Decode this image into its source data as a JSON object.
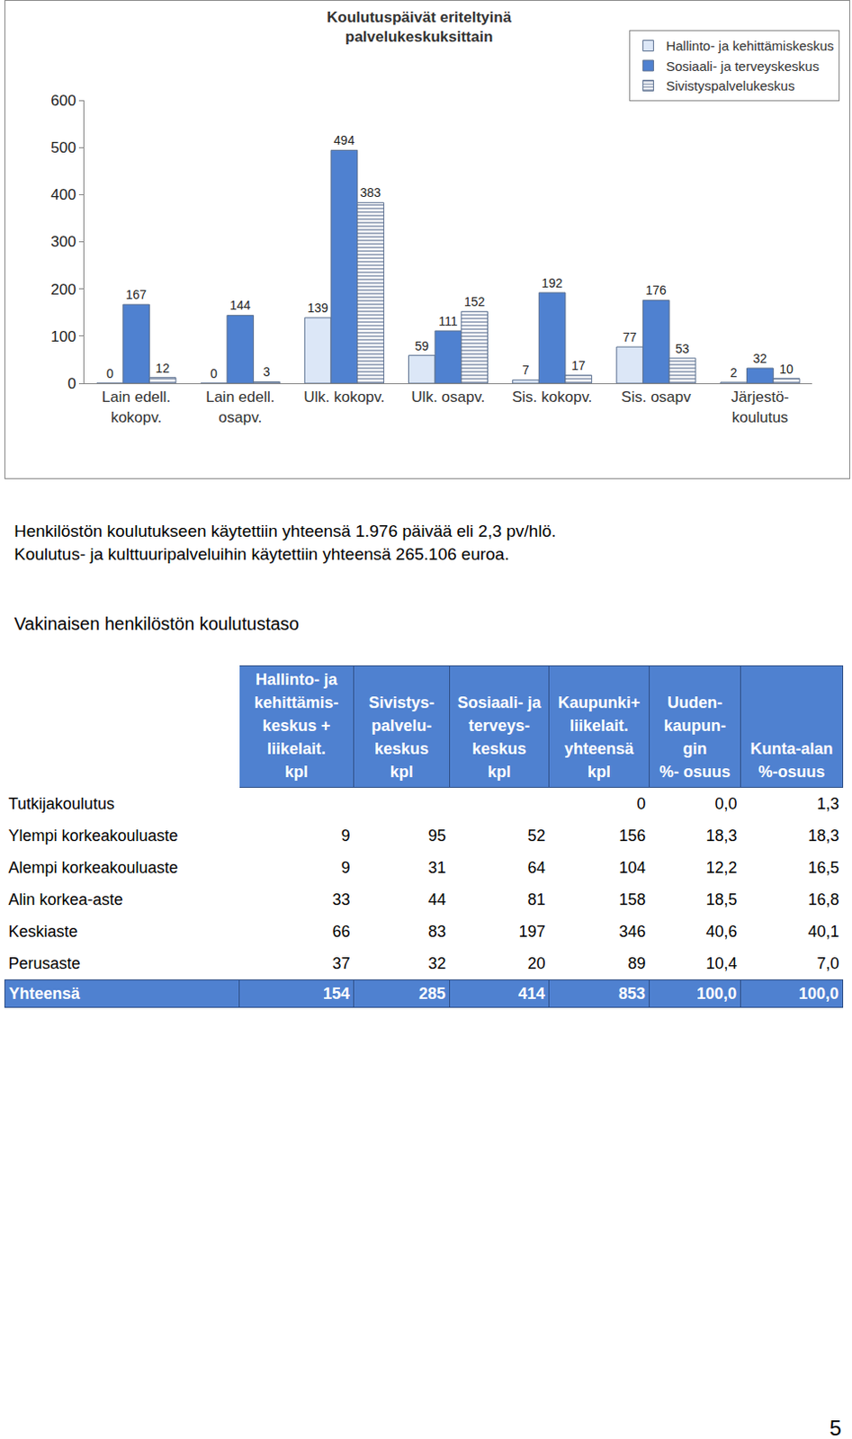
{
  "chart_data": {
    "type": "bar",
    "title": "Koulutuspäivät eriteltyinä\npalvelukeskuksittain",
    "categories": [
      "Lain edell.\nkokopv.",
      "Lain edell.\nosapv.",
      "Ulk. kokopv.",
      "Ulk. osapv.",
      "Sis. kokopv.",
      "Sis. osapv",
      "Järjestö-\nkoulutus"
    ],
    "series": [
      {
        "name": "Hallinto- ja kehittämiskeskus",
        "color": "#dce7f7",
        "values": [
          0,
          0,
          139,
          59,
          7,
          77,
          2
        ]
      },
      {
        "name": "Sosiaali- ja terveyskeskus",
        "color": "#4f81d0",
        "values": [
          167,
          144,
          494,
          111,
          192,
          176,
          32
        ]
      },
      {
        "name": "Sivistyspalvelukeskus",
        "color": "#ffffff",
        "values": [
          12,
          3,
          383,
          152,
          17,
          53,
          10
        ]
      }
    ],
    "ylim": [
      0,
      600
    ],
    "yticks": [
      0,
      100,
      200,
      300,
      400,
      500,
      600
    ],
    "grid": false,
    "legend": "top right",
    "data_labels": true
  },
  "paragraphs": [
    "Henkilöstön koulutukseen käytettiin yhteensä 1.976 päivää eli 2,3 pv/hlö.",
    "Koulutus- ja kulttuuripalveluihin käytettiin yhteensä 265.106 euroa."
  ],
  "table": {
    "title": "Vakinaisen henkilöstön koulutustaso",
    "header": [
      null,
      [
        "Hallinto- ja",
        "kehittämis-",
        "keskus +",
        "liikelait.",
        "kpl"
      ],
      [
        "Sivistys-",
        "palvelu-",
        "keskus",
        "kpl"
      ],
      [
        "Sosiaali- ja",
        "terveys-",
        "keskus",
        "kpl"
      ],
      [
        "Kaupunki+",
        "liikelait.",
        "yhteensä",
        "kpl"
      ],
      [
        "Uuden-",
        "kaupun-",
        "gin",
        "%- osuus"
      ],
      [
        "Kunta-alan",
        "%-osuus"
      ]
    ],
    "rows": [
      [
        "Tutkijakoulutus",
        null,
        null,
        null,
        "0",
        "0,0",
        "1,3"
      ],
      [
        "Ylempi korkeakouluaste",
        "9",
        "95",
        "52",
        "156",
        "18,3",
        "18,3"
      ],
      [
        "Alempi korkeakouluaste",
        "9",
        "31",
        "64",
        "104",
        "12,2",
        "16,5"
      ],
      [
        "Alin korkea-aste",
        "33",
        "44",
        "81",
        "158",
        "18,5",
        "16,8"
      ],
      [
        "Keskiaste",
        "66",
        "83",
        "197",
        "346",
        "40,6",
        "40,1"
      ],
      [
        "Perusaste",
        "37",
        "32",
        "20",
        "89",
        "10,4",
        "7,0"
      ],
      [
        "Yhteensä",
        "154",
        "285",
        "414",
        "853",
        "100,0",
        "100,0"
      ]
    ]
  },
  "page_number": "5"
}
